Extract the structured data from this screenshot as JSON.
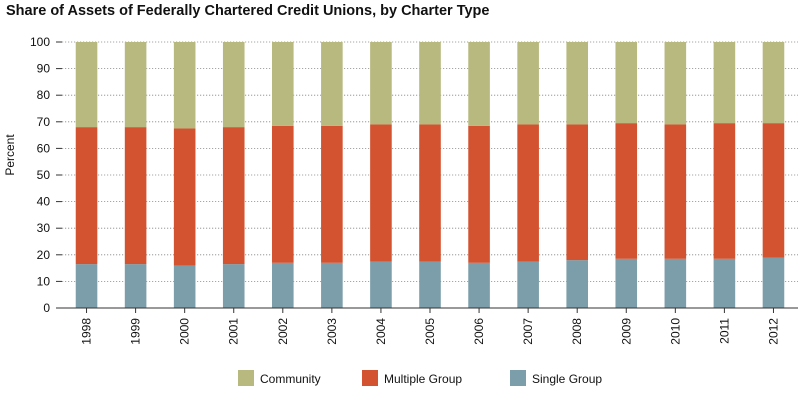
{
  "chart_data": {
    "type": "bar",
    "stacked": true,
    "title": "Share of Assets of Federally Chartered Credit Unions, by Charter Type",
    "ylabel": "Percent",
    "xlabel": "",
    "ylim": [
      0,
      100
    ],
    "yticks": [
      0,
      10,
      20,
      30,
      40,
      50,
      60,
      70,
      80,
      90,
      100
    ],
    "grid": true,
    "legend_position": "bottom",
    "categories": [
      "1998",
      "1999",
      "2000",
      "2001",
      "2002",
      "2003",
      "2004",
      "2005",
      "2006",
      "2007",
      "2008",
      "2009",
      "2010",
      "2011",
      "2012"
    ],
    "series": [
      {
        "name": "Single Group",
        "color": "#7b9eaa",
        "values": [
          16.5,
          16.5,
          16.0,
          16.5,
          17.0,
          17.0,
          17.5,
          17.5,
          17.0,
          17.5,
          18.0,
          18.5,
          18.5,
          18.5,
          19.0
        ]
      },
      {
        "name": "Multiple Group",
        "color": "#d35230",
        "values": [
          51.5,
          51.5,
          51.5,
          51.5,
          51.5,
          51.5,
          51.5,
          51.5,
          51.5,
          51.5,
          51.0,
          51.0,
          50.5,
          51.0,
          50.5
        ]
      },
      {
        "name": "Community",
        "color": "#b8b97e",
        "values": [
          32.0,
          32.0,
          32.5,
          32.0,
          31.5,
          31.5,
          31.0,
          31.0,
          31.5,
          31.0,
          31.0,
          30.5,
          31.0,
          30.5,
          30.5
        ]
      }
    ],
    "legend_order": [
      "Community",
      "Multiple Group",
      "Single Group"
    ]
  }
}
